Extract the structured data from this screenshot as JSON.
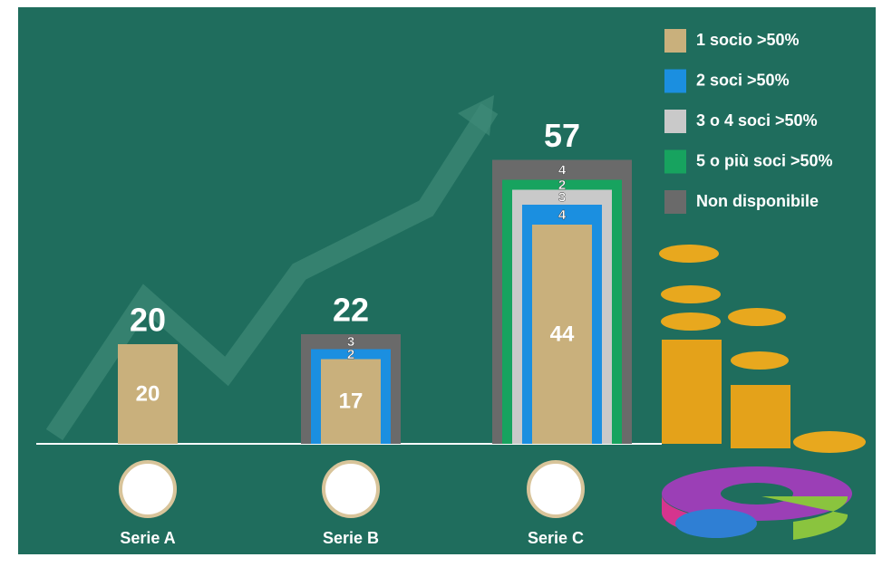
{
  "chart_data": {
    "type": "nested-bar",
    "categories": [
      "Serie A",
      "Serie B",
      "Serie C"
    ],
    "totals": [
      20,
      22,
      57
    ],
    "series": [
      {
        "name": "1 socio >50%",
        "color": "#c9b07c",
        "values": [
          20,
          17,
          44
        ]
      },
      {
        "name": "2 soci >50%",
        "color": "#1b8fe0",
        "values": [
          null,
          2,
          4
        ]
      },
      {
        "name": "3 o 4 soci >50%",
        "color": "#c9c9c9",
        "values": [
          null,
          null,
          3
        ]
      },
      {
        "name": "5 o più soci >50%",
        "color": "#17a35f",
        "values": [
          null,
          null,
          2
        ]
      },
      {
        "name": "Non disponibile",
        "color": "#6a6a6a",
        "values": [
          null,
          3,
          4
        ]
      }
    ]
  }
}
